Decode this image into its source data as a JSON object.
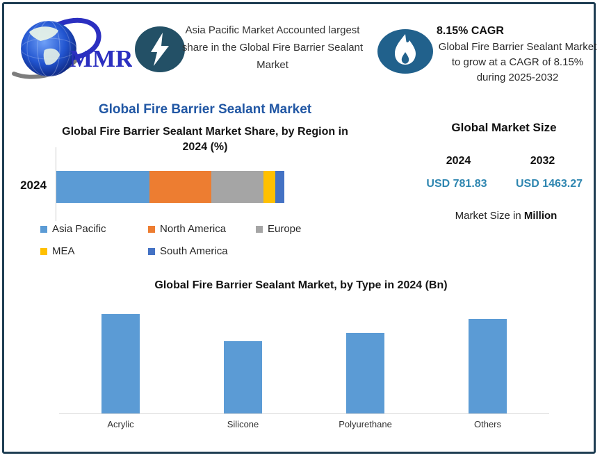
{
  "header": {
    "logo_text": "MMR",
    "highlight": {
      "icon": "lightning-bolt-icon",
      "text": "Asia Pacific Market Accounted largest share in the Global Fire Barrier Sealant Market"
    },
    "cagr": {
      "icon": "flame-icon",
      "heading": "8.15% CAGR",
      "text": "Global Fire Barrier Sealant Market to grow at a CAGR of 8.15% during 2025-2032"
    }
  },
  "main_title": "Global Fire Barrier Sealant Market",
  "market_size": {
    "title": "Global Market Size",
    "col1_year": "2024",
    "col2_year": "2032",
    "col1_value": "USD 781.83",
    "col2_value": "USD 1463.27",
    "footnote_prefix": "Market Size in ",
    "footnote_bold": "Million"
  },
  "chart_data": [
    {
      "type": "bar-horizontal-stacked",
      "title": "Global Fire Barrier Sealant Market Share, by Region in 2024 (%)",
      "categories": [
        "2024"
      ],
      "unit": "%",
      "legend_position": "bottom",
      "axis_values_shown": false,
      "series": [
        {
          "name": "Asia Pacific",
          "value": 41,
          "color": "#5B9BD5"
        },
        {
          "name": "North America",
          "value": 27,
          "color": "#ED7D31"
        },
        {
          "name": "Europe",
          "value": 23,
          "color": "#A5A5A5"
        },
        {
          "name": "MEA",
          "value": 5,
          "color": "#FFC000"
        },
        {
          "name": "South America",
          "value": 4,
          "color": "#4472C4"
        }
      ]
    },
    {
      "type": "bar",
      "title": "Global Fire Barrier Sealant Market, by Type in 2024 (Bn)",
      "categories": [
        "Acrylic",
        "Silicone",
        "Polyurethane",
        "Others"
      ],
      "values_relative": [
        1.0,
        0.73,
        0.81,
        0.95
      ],
      "bar_color": "#5B9BD5",
      "xlabel": "",
      "ylabel": "",
      "note": "y-axis not labeled in image; values are relative bar heights (Acrylic tallest)"
    }
  ],
  "colors": {
    "frame_border": "#1F3E53",
    "title_blue": "#2157A4",
    "value_teal": "#2E86B0",
    "bolt_circle": "#235066",
    "flame_circle": "#21618C",
    "logo_blue": "#2B2FC0"
  }
}
